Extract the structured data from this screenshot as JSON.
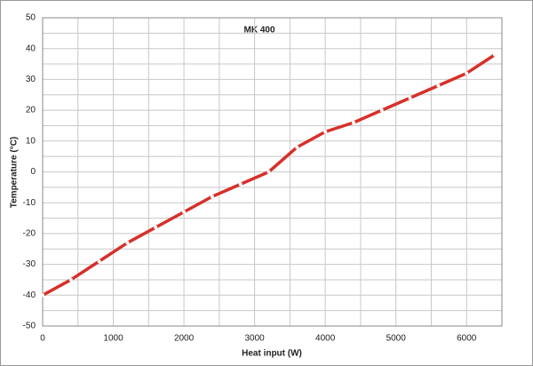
{
  "chart_data": {
    "type": "line",
    "title": "MK 400",
    "x_label": "Heat input (W)",
    "y_label": "Temperature (°C)",
    "xlim": [
      0,
      6500
    ],
    "xticks": [
      0,
      1000,
      2000,
      3000,
      4000,
      5000,
      6000
    ],
    "xgrid": [
      500,
      1500,
      2500,
      3500,
      4500,
      5500,
      6500
    ],
    "ylim": [
      -50,
      50
    ],
    "yticks": [
      -50,
      -40,
      -30,
      -20,
      -10,
      0,
      10,
      20,
      30,
      40,
      50
    ],
    "ygrid": [
      -45,
      -35,
      -25,
      -15,
      -5,
      5,
      15,
      25,
      35,
      45
    ],
    "grid": true,
    "x": [
      0,
      400,
      800,
      1200,
      1600,
      2000,
      2400,
      2800,
      3200,
      3600,
      4000,
      4400,
      4800,
      5200,
      5600,
      6000,
      6400
    ],
    "series": [
      {
        "color": "#d7302a",
        "values": [
          -40,
          -35,
          -29,
          -23,
          -18,
          -13,
          -8,
          -4,
          0,
          8,
          13,
          16,
          20,
          24,
          28,
          32,
          38
        ]
      }
    ]
  }
}
